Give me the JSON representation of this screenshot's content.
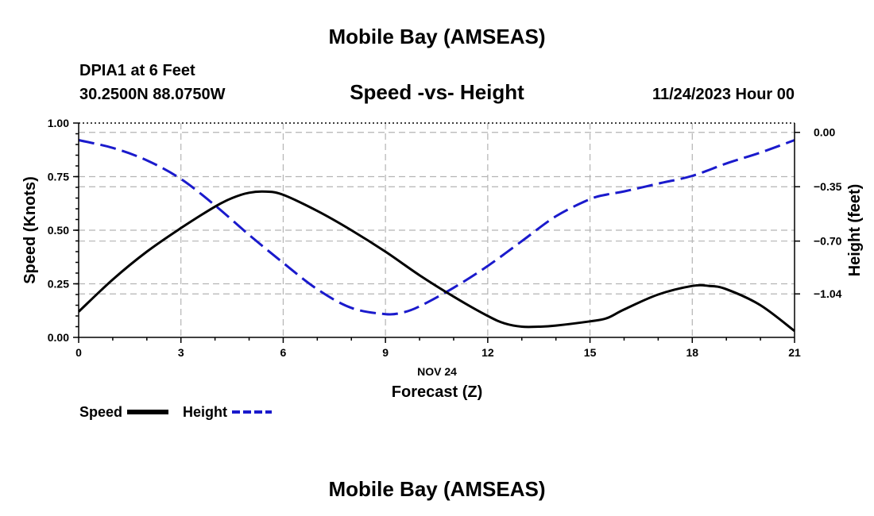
{
  "colors": {
    "speed": "#000000",
    "height": "#1a1acc",
    "grid": "#b4b4b4"
  },
  "title": "Mobile Bay (AMSEAS)",
  "station": "DPIA1 at 6 Feet",
  "coords": "30.2500N  88.0750W",
  "chart_title": "Speed -vs- Height",
  "run_time": "11/24/2023 Hour 00",
  "footer_title": "Mobile Bay (AMSEAS)",
  "chart_data": {
    "type": "line",
    "xlabel_date": "NOV 24",
    "xlabel": "Forecast (Z)",
    "ylabel_left": "Speed (Knots)",
    "ylabel_right": "Height (feet)",
    "xlim": [
      0,
      21
    ],
    "ylim_left": [
      0,
      1
    ],
    "ylim_right": [
      -1.32,
      0.06
    ],
    "x_ticks": [
      "0",
      "3",
      "6",
      "9",
      "12",
      "15",
      "18",
      "21"
    ],
    "y_ticks_left": [
      "0.00",
      "0.25",
      "0.50",
      "0.75",
      "1.00"
    ],
    "y_ticks_right": [
      "0.00",
      "−0.35",
      "−0.70",
      "−1.04"
    ],
    "y_tick_values_right": [
      0.0,
      -0.35,
      -0.7,
      -1.04
    ],
    "grid": true,
    "legend_position": "bottom-left",
    "series": [
      {
        "name": "Speed",
        "axis": "left",
        "style": "solid",
        "x": [
          0,
          1,
          2,
          3,
          4,
          4.5,
          5,
          5.5,
          6,
          7,
          8,
          9,
          10,
          11,
          12,
          12.5,
          13,
          13.5,
          14,
          15,
          15.5,
          16,
          17,
          18,
          18.5,
          19,
          20,
          21
        ],
        "values": [
          0.12,
          0.27,
          0.4,
          0.51,
          0.61,
          0.65,
          0.675,
          0.68,
          0.665,
          0.59,
          0.5,
          0.4,
          0.29,
          0.19,
          0.1,
          0.065,
          0.05,
          0.05,
          0.055,
          0.075,
          0.09,
          0.13,
          0.2,
          0.24,
          0.24,
          0.225,
          0.15,
          0.03
        ]
      },
      {
        "name": "Height",
        "axis": "right",
        "style": "dashed",
        "x": [
          0,
          1,
          2,
          3,
          4,
          5,
          6,
          7,
          8,
          9,
          9.5,
          10,
          11,
          12,
          13,
          14,
          15,
          15.5,
          16,
          17,
          18,
          19,
          20,
          21
        ],
        "values": [
          -0.05,
          -0.1,
          -0.18,
          -0.3,
          -0.47,
          -0.66,
          -0.84,
          -1.01,
          -1.13,
          -1.17,
          -1.16,
          -1.12,
          -1.0,
          -0.86,
          -0.7,
          -0.54,
          -0.43,
          -0.4,
          -0.38,
          -0.33,
          -0.28,
          -0.2,
          -0.13,
          -0.05
        ]
      }
    ]
  }
}
